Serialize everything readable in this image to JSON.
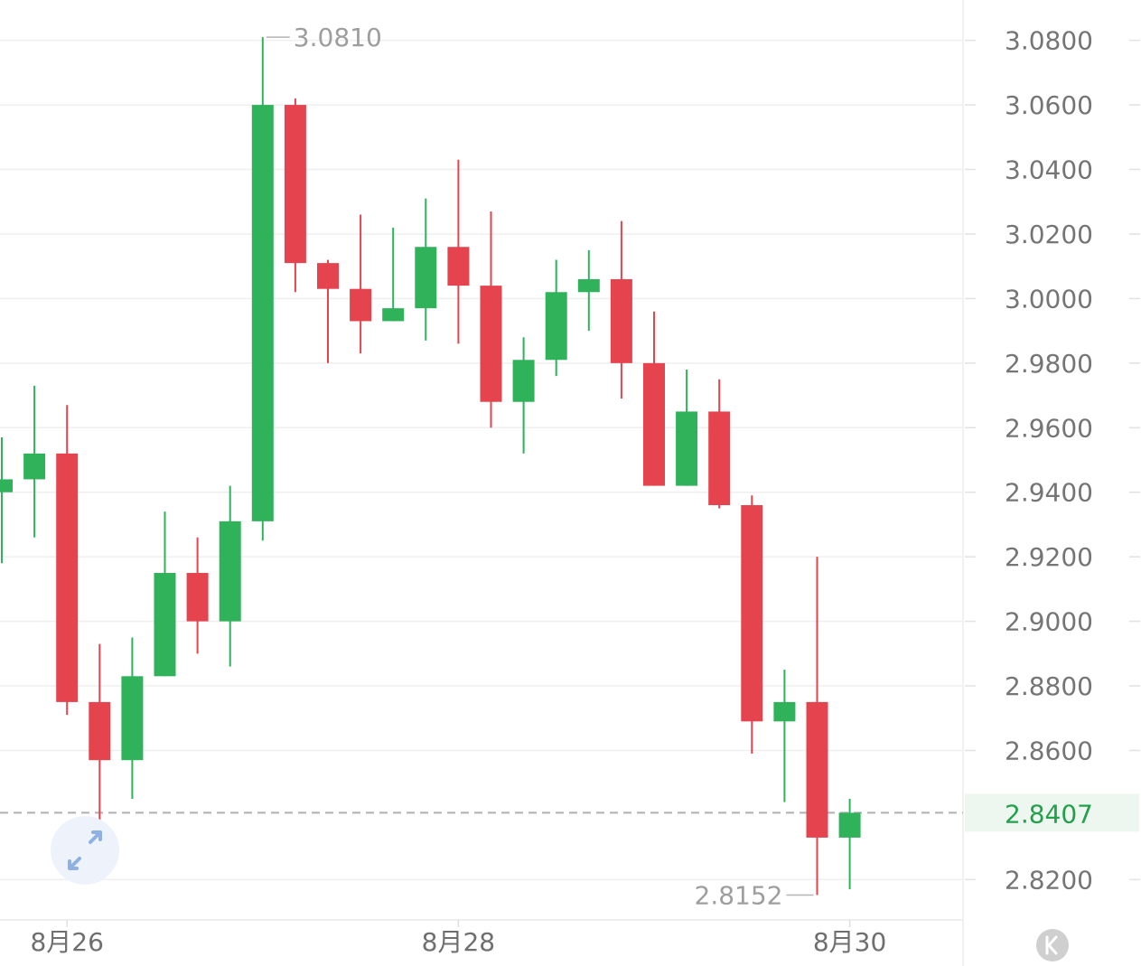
{
  "chart_data": {
    "type": "candlestick",
    "title": "",
    "xlabel": "",
    "ylabel": "",
    "ylim": [
      2.8075,
      3.0925
    ],
    "y_ticks": [
      "3.0800",
      "3.0600",
      "3.0400",
      "3.0200",
      "3.0000",
      "2.9800",
      "2.9600",
      "2.9400",
      "2.9200",
      "2.9000",
      "2.8800",
      "2.8600",
      "2.8200"
    ],
    "x_tick_labels": [
      {
        "label": "8月26",
        "candle_index": 2
      },
      {
        "label": "8月28",
        "candle_index": 14
      },
      {
        "label": "8月30",
        "candle_index": 26
      }
    ],
    "grid": true,
    "colors": {
      "up": "#2fb25a",
      "down": "#e5444f",
      "grid": "#efefef",
      "current_line": "#b0b0b0",
      "current_label_bg": "#eef7ef",
      "current_label_text": "#22a04b"
    },
    "candles": [
      {
        "open": 2.94,
        "high": 2.957,
        "low": 2.918,
        "close": 2.944
      },
      {
        "open": 2.944,
        "high": 2.973,
        "low": 2.926,
        "close": 2.952
      },
      {
        "open": 2.952,
        "high": 2.967,
        "low": 2.871,
        "close": 2.875
      },
      {
        "open": 2.875,
        "high": 2.893,
        "low": 2.82,
        "close": 2.857
      },
      {
        "open": 2.857,
        "high": 2.895,
        "low": 2.845,
        "close": 2.883
      },
      {
        "open": 2.883,
        "high": 2.934,
        "low": 2.883,
        "close": 2.915
      },
      {
        "open": 2.915,
        "high": 2.926,
        "low": 2.89,
        "close": 2.9
      },
      {
        "open": 2.9,
        "high": 2.942,
        "low": 2.886,
        "close": 2.931
      },
      {
        "open": 2.931,
        "high": 3.081,
        "low": 2.925,
        "close": 3.06
      },
      {
        "open": 3.06,
        "high": 3.062,
        "low": 3.002,
        "close": 3.011
      },
      {
        "open": 3.011,
        "high": 3.012,
        "low": 2.98,
        "close": 3.003
      },
      {
        "open": 3.003,
        "high": 3.026,
        "low": 2.983,
        "close": 2.993
      },
      {
        "open": 2.993,
        "high": 3.022,
        "low": 2.993,
        "close": 2.997
      },
      {
        "open": 2.997,
        "high": 3.031,
        "low": 2.987,
        "close": 3.016
      },
      {
        "open": 3.016,
        "high": 3.043,
        "low": 2.986,
        "close": 3.004
      },
      {
        "open": 3.004,
        "high": 3.027,
        "low": 2.96,
        "close": 2.968
      },
      {
        "open": 2.968,
        "high": 2.988,
        "low": 2.952,
        "close": 2.981
      },
      {
        "open": 2.981,
        "high": 3.012,
        "low": 2.976,
        "close": 3.002
      },
      {
        "open": 3.002,
        "high": 3.015,
        "low": 2.99,
        "close": 3.006
      },
      {
        "open": 3.006,
        "high": 3.024,
        "low": 2.969,
        "close": 2.98
      },
      {
        "open": 2.98,
        "high": 2.996,
        "low": 2.942,
        "close": 2.942
      },
      {
        "open": 2.942,
        "high": 2.978,
        "low": 2.942,
        "close": 2.965
      },
      {
        "open": 2.965,
        "high": 2.975,
        "low": 2.935,
        "close": 2.936
      },
      {
        "open": 2.936,
        "high": 2.939,
        "low": 2.859,
        "close": 2.869
      },
      {
        "open": 2.869,
        "high": 2.885,
        "low": 2.844,
        "close": 2.875
      },
      {
        "open": 2.875,
        "high": 2.92,
        "low": 2.8152,
        "close": 2.833
      },
      {
        "open": 2.833,
        "high": 2.845,
        "low": 2.817,
        "close": 2.8407
      }
    ],
    "annotations": {
      "max_label": "3.0810",
      "min_label": "2.8152",
      "current_value": "2.8407"
    }
  }
}
